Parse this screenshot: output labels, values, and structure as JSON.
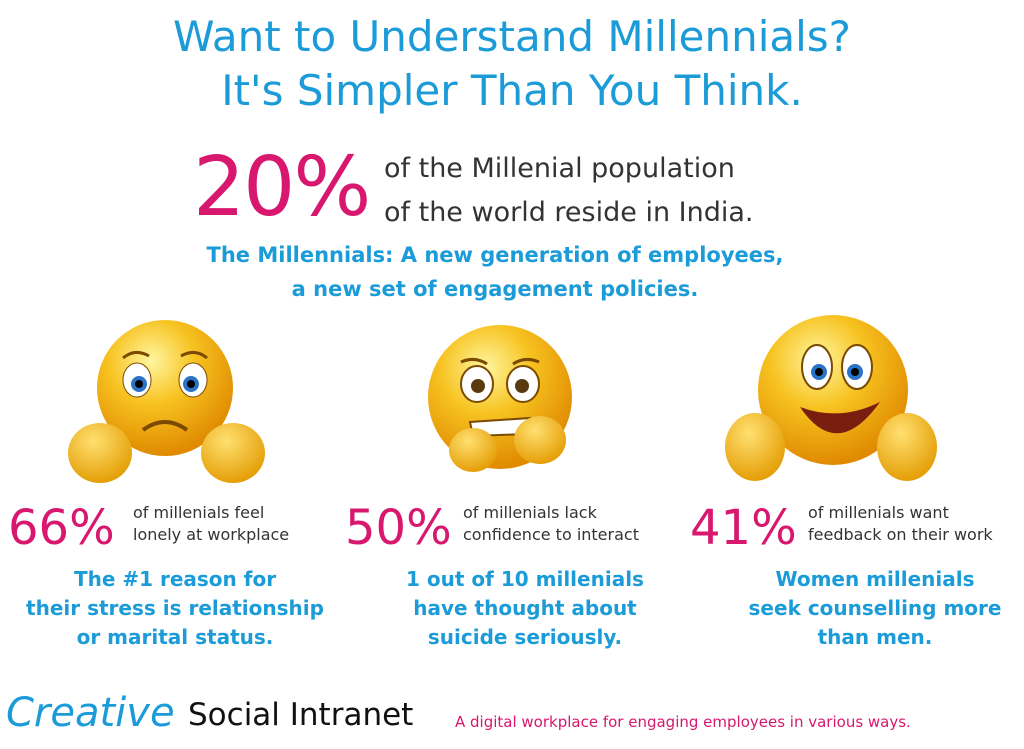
{
  "header": {
    "title": [
      "Want to Understand Millennials?",
      "It's Simpler Than You Think."
    ]
  },
  "headline": {
    "stat": "20%",
    "text": [
      "of the Millenial population",
      "of the world reside in India."
    ]
  },
  "subtitle": [
    "The Millennials: A new generation of employees,",
    "a new set of engagement policies."
  ],
  "panels": [
    {
      "stat": "66%",
      "text": [
        "of millenials feel",
        "lonely at workplace"
      ],
      "note": [
        "The #1 reason for",
        "their stress is relationship",
        "or marital status."
      ]
    },
    {
      "stat": "50%",
      "text": [
        "of millenials lack",
        "confidence to interact"
      ],
      "note": [
        "1 out of 10 millenials",
        "have thought about",
        "suicide seriously."
      ]
    },
    {
      "stat": "41%",
      "text": [
        "of millenials want",
        "feedback on their work"
      ],
      "note": [
        "Women millenials",
        "seek counselling more",
        "than men."
      ]
    }
  ],
  "footer": {
    "brand": "Creative",
    "product": "Social Intranet",
    "tagline": "A digital workplace for engaging employees in various ways."
  }
}
